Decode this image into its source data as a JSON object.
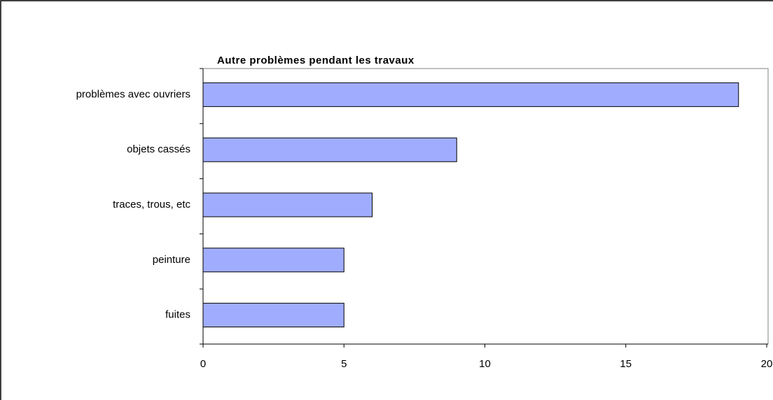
{
  "chart_data": {
    "type": "hbar",
    "title": "Autre problèmes pendant les travaux",
    "categories": [
      "problèmes avec ouvriers",
      "objets cassés",
      "traces, trous, etc",
      "peinture",
      "fuites"
    ],
    "values": [
      19,
      9,
      6,
      5,
      5
    ],
    "color": "#a0adff",
    "xlim": [
      0,
      20
    ],
    "xticks": [
      0,
      5,
      10,
      15,
      20
    ],
    "grid": false
  }
}
